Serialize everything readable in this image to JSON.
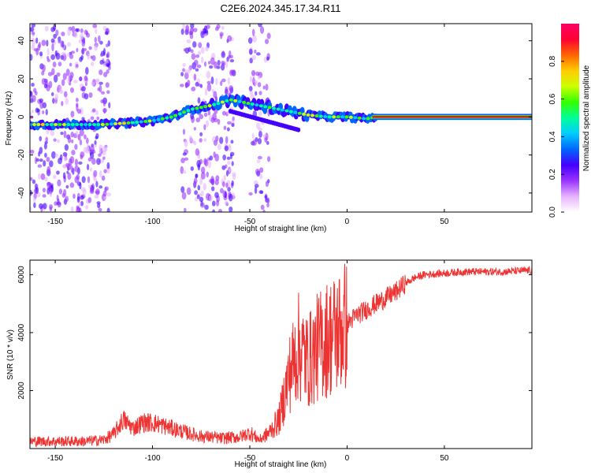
{
  "title": "C2E6.2024.345.17.34.R11",
  "chart_data": [
    {
      "type": "heatmap",
      "xlabel": "Height of straight line (km)",
      "ylabel": "Frequency (Hz)",
      "xlim": [
        -163,
        95
      ],
      "ylim": [
        -50,
        49
      ],
      "xticks": [
        -150,
        -100,
        -50,
        0,
        50
      ],
      "yticks": [
        -40,
        -20,
        0,
        20,
        40
      ],
      "colorbar": {
        "label": "Normalized spectral amplitude",
        "range": [
          0,
          1
        ],
        "ticks": [
          0.0,
          0.2,
          0.4,
          0.6,
          0.8
        ],
        "tick_labels": [
          "0.0",
          "0.2",
          "0.4",
          "0.6",
          "0.8"
        ],
        "colors": [
          "#ffffff",
          "#e6b3ff",
          "#9933ff",
          "#4400ff",
          "#0066ff",
          "#00ccff",
          "#00ff99",
          "#33ff00",
          "#ccff00",
          "#ffcc00",
          "#ff6600",
          "#ff0033",
          "#ff0066"
        ]
      },
      "ridge": {
        "x": [
          -163,
          -140,
          -125,
          -110,
          -100,
          -90,
          -80,
          -70,
          -60,
          -50,
          -40,
          -30,
          -20,
          -10,
          0,
          10,
          15,
          95
        ],
        "y": [
          -4,
          -4,
          -4,
          -3,
          -2,
          0,
          4,
          6,
          9,
          7,
          5,
          3,
          1,
          0,
          0,
          -1,
          0,
          0
        ]
      }
    },
    {
      "type": "line",
      "xlabel": "Height of straight line (km)",
      "ylabel": "SNR (10 * v/v)",
      "xlim": [
        -163,
        95
      ],
      "ylim": [
        0,
        6500
      ],
      "xticks": [
        -150,
        -100,
        -50,
        0,
        50
      ],
      "yticks": [
        2000,
        4000,
        6000
      ],
      "line_color": "#ee3333",
      "series": [
        {
          "x": [
            -163,
            -150,
            -135,
            -125,
            -120,
            -115,
            -110,
            -105,
            -100,
            -95,
            -90,
            -85,
            -80,
            -75,
            -70,
            -65,
            -60,
            -55,
            -50,
            -45,
            -40,
            -35,
            -30,
            -25,
            -20,
            -15,
            -10,
            -5,
            0,
            5,
            10,
            15,
            20,
            25,
            30,
            35,
            40,
            50,
            60,
            70,
            80,
            95
          ],
          "y": [
            250,
            250,
            250,
            300,
            500,
            1000,
            700,
            900,
            900,
            800,
            700,
            600,
            500,
            420,
            400,
            350,
            380,
            400,
            550,
            300,
            550,
            1000,
            2500,
            3500,
            3000,
            3500,
            3800,
            4000,
            4300,
            4600,
            4800,
            5000,
            5200,
            5400,
            5700,
            5900,
            6000,
            6050,
            6100,
            6100,
            6100,
            6150
          ]
        }
      ]
    }
  ]
}
